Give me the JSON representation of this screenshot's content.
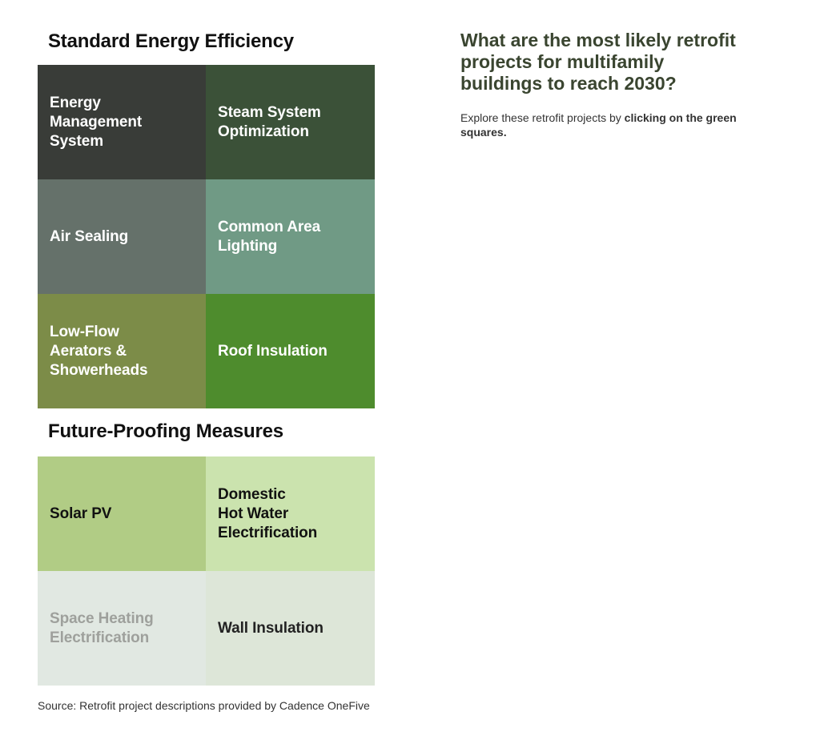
{
  "standard": {
    "title": "Standard Energy Efficiency",
    "tiles": [
      {
        "label": "Energy\nManagement\nSystem",
        "bg": "#393c38",
        "fg": "#ffffff"
      },
      {
        "label": "Steam System\nOptimization",
        "bg": "#3b5138",
        "fg": "#ffffff"
      },
      {
        "label": "Air Sealing",
        "bg": "#65716a",
        "fg": "#ffffff"
      },
      {
        "label": "Common Area\nLighting",
        "bg": "#709a85",
        "fg": "#ffffff"
      },
      {
        "label": "Low-Flow\nAerators &\nShowerheads",
        "bg": "#7c8c48",
        "fg": "#ffffff"
      },
      {
        "label": "Roof Insulation",
        "bg": "#4e8c2d",
        "fg": "#ffffff"
      }
    ]
  },
  "future": {
    "title": "Future-Proofing Measures",
    "tiles": [
      {
        "label": "Solar PV",
        "bg": "#b1cc85",
        "fg": "#111111"
      },
      {
        "label": "Domestic\nHot Water\nElectrification",
        "bg": "#cbe3ae",
        "fg": "#111111"
      },
      {
        "label": "Space Heating\nElectrification",
        "bg": "#e1e8e2",
        "fg": "#9ea09c"
      },
      {
        "label": "Wall Insulation",
        "bg": "#dde6d8",
        "fg": "#222222"
      }
    ]
  },
  "aside": {
    "heading": "What are the most likely retrofit\nprojects for multifamily\nbuildings to reach 2030?",
    "intro_prefix": "Explore these retrofit projects by ",
    "intro_bold": "clicking on the green squares."
  },
  "source": "Source: Retrofit project descriptions provided by Cadence OneFive"
}
